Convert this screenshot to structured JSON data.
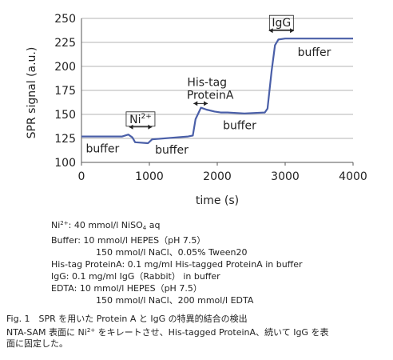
{
  "chart_data": {
    "type": "line",
    "xlabel": "time (s)",
    "ylabel": "SPR signal (a.u.)",
    "xlim": [
      0,
      4000
    ],
    "ylim": [
      100,
      250
    ],
    "xticks": [
      "0",
      "1000",
      "2000",
      "3000",
      "4000"
    ],
    "yticks": [
      "100",
      "125",
      "150",
      "175",
      "200",
      "225",
      "250"
    ],
    "grid": true,
    "series": [
      {
        "color": "#4a5fa8",
        "x": [
          0,
          600,
          690,
          750,
          790,
          980,
          1040,
          1570,
          1640,
          1680,
          1760,
          1840,
          1960,
          2050,
          2150,
          2400,
          2700,
          2740,
          2800,
          2850,
          2900,
          3000,
          4000
        ],
        "y": [
          127,
          127,
          129,
          126,
          121,
          120,
          124,
          127,
          128,
          145,
          157,
          155,
          153,
          152,
          152,
          151,
          152,
          156,
          195,
          222,
          228,
          229,
          229
        ]
      }
    ],
    "annotations": [
      {
        "text": "Ni",
        "sup": "2+",
        "x_range": [
          700,
          1040
        ]
      },
      {
        "text": "His-tag",
        "text2": "ProteinA",
        "x_range": [
          1650,
          1860
        ]
      },
      {
        "text": "IgG",
        "x_range": [
          2760,
          3130
        ]
      },
      {
        "text": "buffer",
        "position": "below-line",
        "x": 310
      },
      {
        "text": "buffer",
        "position": "below-line",
        "x": 1330
      },
      {
        "text": "buffer",
        "position": "below-line",
        "x": 2330
      },
      {
        "text": "buffer",
        "position": "below-line",
        "x": 3430
      }
    ]
  },
  "notes": [
    {
      "label": "Ni",
      "sup": "2+",
      "rest": ": 40 mmol/l NiSO",
      "sub": "4",
      "tail": " aq"
    },
    {
      "text": "Buffer: 10 mmol/l HEPES（pH 7.5）"
    },
    {
      "text": "                150 mmol/l NaCl、0.05% Tween20"
    },
    {
      "text": "His-tag ProteinA: 0.1 mg/ml His-tagged ProteinA in buffer"
    },
    {
      "text": "IgG: 0.1 mg/ml IgG（Rabbit） in buffer"
    },
    {
      "text": "EDTA: 10 mmol/l HEPES（pH 7.5）"
    },
    {
      "text": "                150 mmol/l NaCl、200 mmol/l EDTA"
    }
  ],
  "caption": {
    "line1": "Fig. 1　SPR を用いた Protein A と IgG の特異的結合の検出",
    "line2a": "NTA-SAM 表面に Ni",
    "line2sup": "2+",
    "line2b": " をキレートさせ、His-tagged ProteinA、続いて IgG を表",
    "line3": "面に固定した。"
  }
}
